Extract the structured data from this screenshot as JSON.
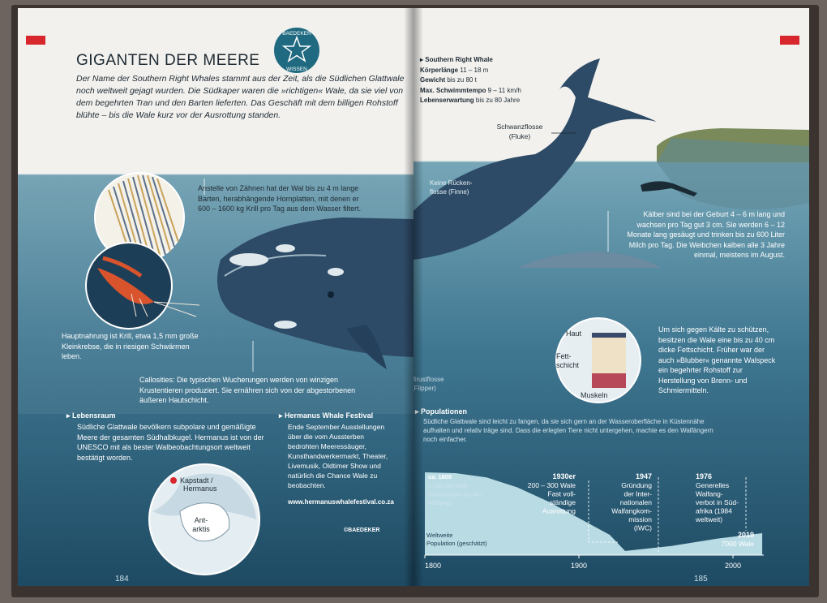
{
  "left": {
    "badge": {
      "top": "BAEDEKER",
      "bottom": "WISSEN"
    },
    "title": "GIGANTEN DER MEERE",
    "intro": "Der Name der Southern Right Whales stammt aus der Zeit, als die Südlichen Glattwale noch weltweit gejagt wurden. Die Südkaper waren die »richtigen« Wale, da sie viel von dem begehrten Tran und den Barten lieferten. Das Geschäft mit dem billigen Rohstoff blühte – bis die Wale kurz vor der Ausrottung standen.",
    "barten": "Anstelle von Zähnen hat der Wal bis zu 4 m lange Barten, herabhängende Hornplatten, mit denen er 600 – 1600 kg Krill pro Tag aus dem Wasser filtert.",
    "krill": "Hauptnahrung ist Krill, etwa 1,5 mm große Kleinkrebse, die in riesigen Schwärmen leben.",
    "callosities": "Callosities: Die typischen Wucherungen werden von winzigen Krustentieren produziert. Sie ernähren sich von der abgestorbenen äußeren Hautschicht.",
    "lebensraum": {
      "heading": "Lebensraum",
      "text": "Südliche Glattwale bevölkern subpolare und gemäßigte Meere der gesamten Südhalbkugel. Hermanus ist von der UNESCO mit als bester Walbeobachtungsort weltweit bestätigt worden."
    },
    "globe": {
      "city_line1": "Kapstadt /",
      "city_line2": "Hermanus",
      "ant_line1": "Ant-",
      "ant_line2": "arktis"
    },
    "festival": {
      "heading": "Hermanus Whale Festival",
      "text": "Ende September Ausstellungen über die vom Aussterben bedrohten Meeressäuger, Kunsthandwerkermarkt, Theater, Livemusik, Oldtimer Show und natürlich die Chance Wale zu beobachten.",
      "url": "www.hermanuswhalefestival.co.za"
    },
    "credit": "©BAEDEKER",
    "page_number": "184"
  },
  "right": {
    "facts": {
      "heading": "Southern Right Whale",
      "rows": [
        {
          "label": "Körperlänge",
          "value": " 11 – 18 m"
        },
        {
          "label": "Gewicht",
          "value": " bis zu 80 t"
        },
        {
          "label": "Max. Schwimmtempo",
          "value": " 9 – 11 km/h"
        },
        {
          "label": "Lebenserwartung",
          "value": " bis zu 80 Jahre"
        }
      ]
    },
    "fluke": {
      "line1": "Schwanzflosse",
      "line2": "(Fluke)"
    },
    "finne": {
      "line1": "Keine Rücken-",
      "line2": "flosse (Finne)"
    },
    "flipper": {
      "line1": "Brustflosse",
      "line2": "(Flipper)"
    },
    "kaelber": "Kälber sind bei der Geburt 4 – 6 m lang und wachsen pro Tag gut 3 cm. Sie werden 6 – 12 Monate lang gesäugt und trinken bis zu 600 Liter Milch pro Tag. Die Weibchen kalben alle 3 Jahre einmal, meistens im August.",
    "blubber": "Um sich gegen Kälte zu schützen, besitzen die Wale eine bis zu 40 cm dicke Fettschicht. Früher war der auch »Blubber« genannte Walspeck ein begehrter Rohstoff zur Herstellung von Brenn- und Schmiermitteln.",
    "layers": {
      "haut": "Haut",
      "fett_line1": "Fett-",
      "fett_line2": "schicht",
      "muskeln": "Muskeln"
    },
    "populationen": {
      "heading": "Populationen",
      "text": "Südliche Glattwale sind leicht zu fangen, da sie sich gern an der Wasseroberfläche in Küstennähe aufhalten und relativ träge sind. Dass die erlegten Tiere nicht untergehen, machte es den Walfängern noch einfacher."
    },
    "page_number": "185"
  },
  "chart_data": {
    "type": "area",
    "title": "",
    "xlabel": "",
    "ylabel": "Weltweite Population (geschätzt)",
    "x_ticks": [
      "1800",
      "1900",
      "2000"
    ],
    "xlim": [
      1800,
      2020
    ],
    "series": [
      {
        "values": [
          {
            "x": 1800,
            "y": 100000
          },
          {
            "x": 1820,
            "y": 98000
          },
          {
            "x": 1840,
            "y": 88000
          },
          {
            "x": 1860,
            "y": 67000
          },
          {
            "x": 1880,
            "y": 42000
          },
          {
            "x": 1900,
            "y": 20000
          },
          {
            "x": 1920,
            "y": 6000
          },
          {
            "x": 1930,
            "y": 250
          },
          {
            "x": 1960,
            "y": 1200
          },
          {
            "x": 1990,
            "y": 4000
          },
          {
            "x": 2019,
            "y": 7000
          }
        ]
      }
    ],
    "annotations": [
      {
        "year": "ca. 1800",
        "lines": [
          "> 100 000 Wale",
          "Industrialisierung des",
          "Walfangs"
        ]
      },
      {
        "year": "1930er",
        "lines": [
          "200 – 300 Wale",
          "Fast voll-",
          "ständige",
          "Ausrottung"
        ]
      },
      {
        "year": "1947",
        "lines": [
          "Gründung",
          "der Inter-",
          "nationalen",
          "Walfangkom-",
          "mission",
          "(IWC)"
        ]
      },
      {
        "year": "1976",
        "lines": [
          "Generelles",
          "Walfang-",
          "verbot in Süd-",
          "afrika (1984",
          "weltweit)"
        ]
      },
      {
        "year": "2019",
        "lines": [
          "7000 Wale"
        ]
      }
    ]
  },
  "colors": {
    "ink": "#1e2a33",
    "accent_red": "#d8262d",
    "badge": "#1f6a80",
    "whale": "#2d4a66"
  }
}
